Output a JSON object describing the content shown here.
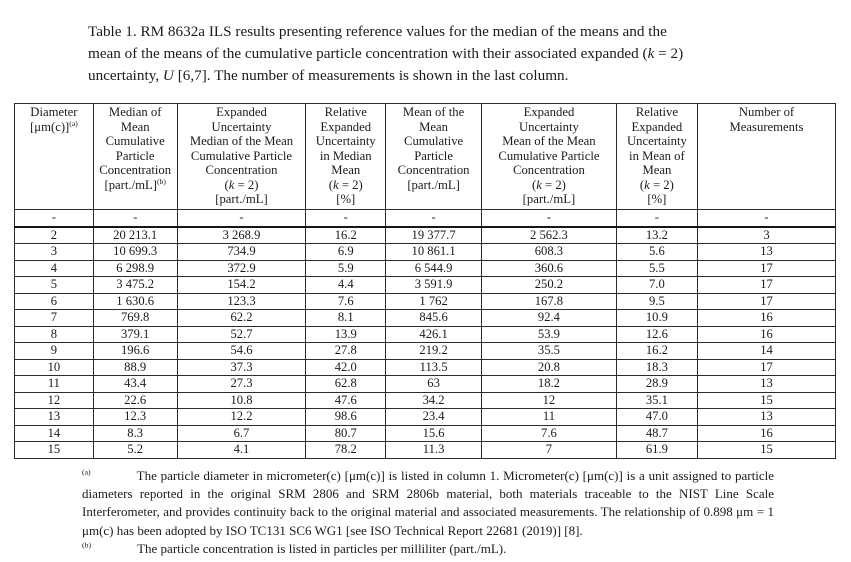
{
  "style": {
    "background": "#ffffff",
    "text_color": "#1b1b1b",
    "table_border_color": "#2b2b2b"
  },
  "caption": {
    "lines": [
      "Table 1.  RM 8632a ILS results presenting reference values for the median of the means and the",
      "mean of the means of the cumulative particle concentration with their associated expanded (*k* = 2)",
      "uncertainty, *U* [6,7].  The number of measurements is shown in the last column."
    ]
  },
  "table": {
    "headers": [
      {
        "lines": [
          "Diameter",
          "[μm(c)]^(a)^"
        ]
      },
      {
        "lines": [
          "Median of",
          "Mean",
          "Cumulative",
          "Particle",
          "Concentration",
          "[part./mL]^(b)^"
        ]
      },
      {
        "lines": [
          "Expanded",
          "Uncertainty",
          "Median of the Mean",
          "Cumulative Particle",
          "Concentration",
          "(*k* = 2)",
          "[part./mL]"
        ]
      },
      {
        "lines": [
          "Relative",
          "Expanded",
          "Uncertainty",
          "in Median",
          "Mean",
          "(*k* = 2)",
          "[%]"
        ]
      },
      {
        "lines": [
          "Mean of the",
          "Mean",
          "Cumulative",
          "Particle",
          "Concentration",
          "[part./mL]"
        ]
      },
      {
        "lines": [
          "Expanded",
          "Uncertainty",
          "Mean of the Mean",
          "Cumulative Particle",
          "Concentration",
          "(*k* = 2)",
          "[part./mL]"
        ]
      },
      {
        "lines": [
          "Relative",
          "Expanded",
          "Uncertainty",
          "in Mean of",
          "Mean",
          "(*k* = 2)",
          "[%]"
        ]
      },
      {
        "lines": [
          "Number of",
          "Measurements"
        ]
      }
    ],
    "rows": [
      [
        "-",
        "-",
        "-",
        "-",
        "-",
        "-",
        "-",
        "-"
      ],
      [
        "2",
        "20 213.1",
        "3 268.9",
        "16.2",
        "19 377.7",
        "2 562.3",
        "13.2",
        "3"
      ],
      [
        "3",
        "10 699.3",
        "734.9",
        "6.9",
        "10 861.1",
        "608.3",
        "5.6",
        "13"
      ],
      [
        "4",
        "6 298.9",
        "372.9",
        "5.9",
        "6 544.9",
        "360.6",
        "5.5",
        "17"
      ],
      [
        "5",
        "3 475.2",
        "154.2",
        "4.4",
        "3 591.9",
        "250.2",
        "7.0",
        "17"
      ],
      [
        "6",
        "1 630.6",
        "123.3",
        "7.6",
        "1 762",
        "167.8",
        "9.5",
        "17"
      ],
      [
        "7",
        "769.8",
        "62.2",
        "8.1",
        "845.6",
        "92.4",
        "10.9",
        "16"
      ],
      [
        "8",
        "379.1",
        "52.7",
        "13.9",
        "426.1",
        "53.9",
        "12.6",
        "16"
      ],
      [
        "9",
        "196.6",
        "54.6",
        "27.8",
        "219.2",
        "35.5",
        "16.2",
        "14"
      ],
      [
        "10",
        "88.9",
        "37.3",
        "42.0",
        "113.5",
        "20.8",
        "18.3",
        "17"
      ],
      [
        "11",
        "43.4",
        "27.3",
        "62.8",
        "63",
        "18.2",
        "28.9",
        "13"
      ],
      [
        "12",
        "22.6",
        "10.8",
        "47.6",
        "34.2",
        "12",
        "35.1",
        "15"
      ],
      [
        "13",
        "12.3",
        "12.2",
        "98.6",
        "23.4",
        "11",
        "47.0",
        "13"
      ],
      [
        "14",
        "8.3",
        "6.7",
        "80.7",
        "15.6",
        "7.6",
        "48.7",
        "16"
      ],
      [
        "15",
        "5.2",
        "4.1",
        "78.2",
        "11.3",
        "7",
        "61.9",
        "15"
      ]
    ]
  },
  "footnotes": [
    {
      "marker": "(a)",
      "justify": true,
      "text": "The particle diameter in micrometer(c) [μm(c)] is listed in column 1.  Micrometer(c) [μm(c)] is a unit assigned to particle diameters reported in the original SRM 2806 and SRM 2806b material, both materials traceable to the NIST Line Scale Interferometer, and provides continuity back to the original material and associated measurements.  The relationship of 0.898 μm = 1 μm(c) has been adopted by ISO TC131 SC6 WG1 [see ISO Technical Report 22681 (2019)] [8]."
    },
    {
      "marker": "(b)",
      "justify": false,
      "text": "The particle concentration is listed in particles per milliliter (part./mL)."
    }
  ]
}
